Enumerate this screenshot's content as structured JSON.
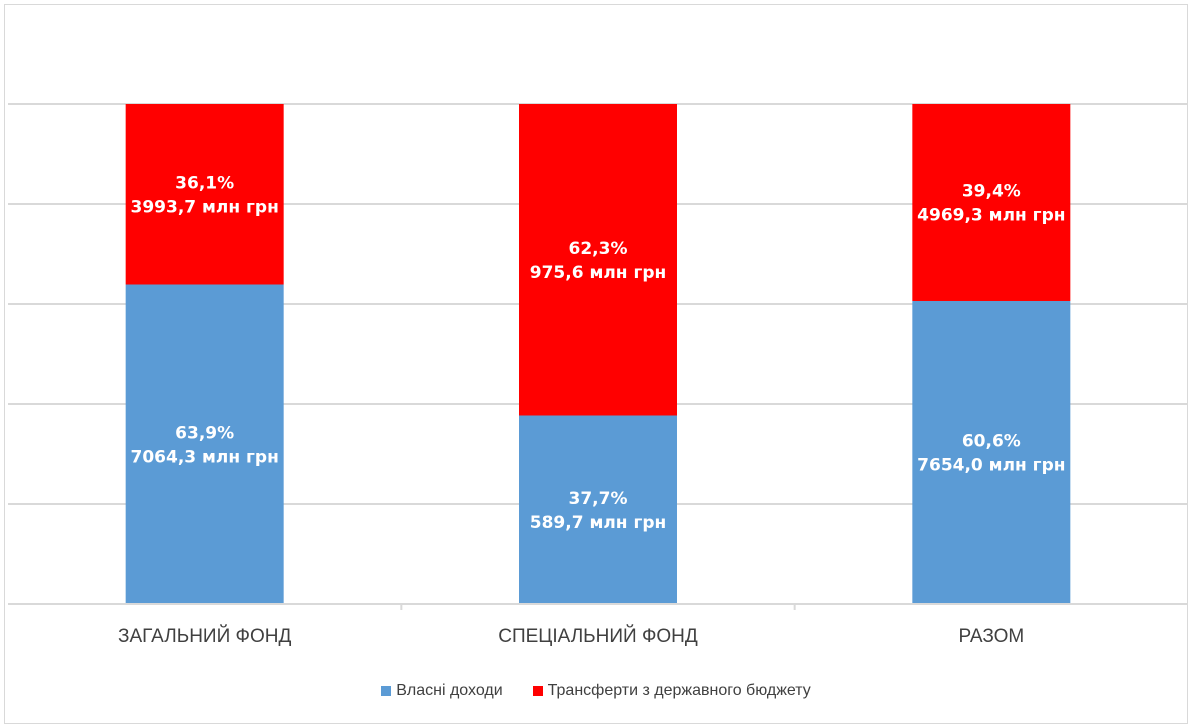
{
  "chart_data": {
    "type": "bar",
    "stacked": true,
    "percent_stacked": true,
    "categories": [
      "ЗАГАЛЬНИЙ ФОНД",
      "СПЕЦІАЛЬНИЙ ФОНД",
      "РАЗОМ"
    ],
    "series": [
      {
        "name": "Власні доходи",
        "color": "#5b9bd5",
        "values": [
          63.9,
          37.7,
          60.6
        ],
        "labels": [
          [
            "63,9%",
            "7064,3 млн грн"
          ],
          [
            "37,7%",
            "589,7 млн грн"
          ],
          [
            "60,6%",
            "7654,0 млн грн"
          ]
        ]
      },
      {
        "name": "Трансферти з державного бюджету",
        "color": "#ff0000",
        "values": [
          36.1,
          62.3,
          39.4
        ],
        "labels": [
          [
            "36,1%",
            "3993,7 млн грн"
          ],
          [
            "62,3%",
            "975,6 млн грн"
          ],
          [
            "39,4%",
            "4969,3 млн грн"
          ]
        ]
      }
    ],
    "ylim": [
      0,
      120
    ],
    "grid": true,
    "legend_position": "bottom",
    "title": "",
    "xlabel": "",
    "ylabel": ""
  }
}
